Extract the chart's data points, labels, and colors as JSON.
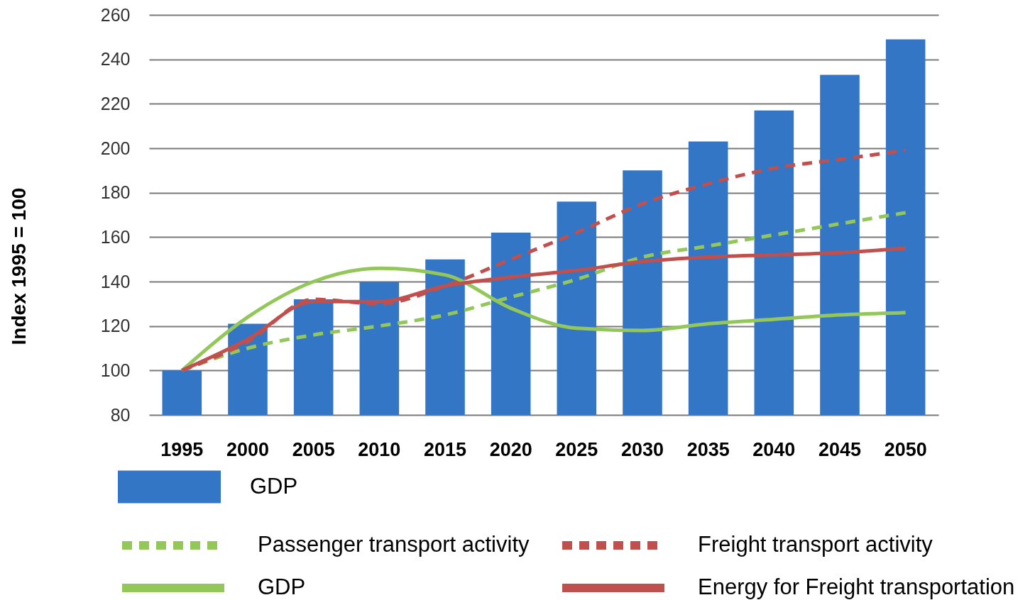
{
  "chart_data": {
    "type": "bar",
    "ylabel": "Index 1995 = 100",
    "categories": [
      "1995",
      "2000",
      "2005",
      "2010",
      "2015",
      "2020",
      "2025",
      "2030",
      "2035",
      "2040",
      "2045",
      "2050"
    ],
    "series": [
      {
        "name": "GDP",
        "type": "bar",
        "color": "#3476c6",
        "values": [
          100,
          121,
          132,
          140,
          150,
          162,
          176,
          190,
          203,
          217,
          233,
          249
        ]
      },
      {
        "name": "Passenger transport activity",
        "type": "line",
        "line_style": "dashed",
        "color": "#93c75a",
        "values": [
          100,
          110,
          116,
          120,
          125,
          133,
          141,
          151,
          156,
          161,
          166,
          171
        ]
      },
      {
        "name": "Freight transport activity",
        "type": "line",
        "line_style": "dashed",
        "color": "#c0504d",
        "values": [
          100,
          113,
          132,
          130,
          138,
          150,
          162,
          175,
          184,
          191,
          195,
          199
        ]
      },
      {
        "name": "GDP",
        "type": "line",
        "line_style": "solid",
        "color": "#93c75a",
        "values": [
          100,
          124,
          140,
          146,
          143,
          128,
          119,
          118,
          121,
          123,
          125,
          126
        ]
      },
      {
        "name": "Energy for Freight transportation",
        "type": "line",
        "line_style": "solid",
        "color": "#c0504d",
        "values": [
          100,
          114,
          131,
          131,
          138,
          142,
          145,
          149,
          151,
          152,
          153,
          155
        ]
      }
    ],
    "ylim": [
      80,
      260
    ],
    "yticks": [
      80,
      100,
      120,
      140,
      160,
      180,
      200,
      220,
      240,
      260
    ],
    "grid": "y",
    "legend": "bottom"
  }
}
